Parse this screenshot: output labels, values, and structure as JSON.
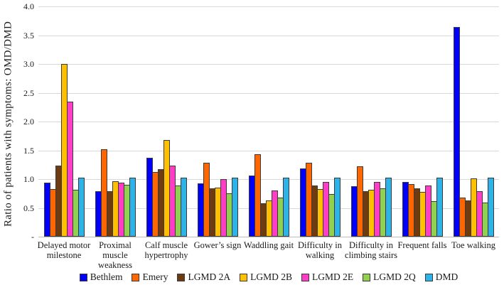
{
  "chart_data": {
    "type": "bar",
    "title": "",
    "xlabel": "",
    "ylabel": "Ratio of  patients with symptoms: OMD/DMD",
    "ylim": [
      0,
      4.0
    ],
    "grid": true,
    "legend_position": "bottom",
    "y_ticks": [
      {
        "label": "4.0",
        "value": 4.0
      },
      {
        "label": "3.5",
        "value": 3.5
      },
      {
        "label": "3.0",
        "value": 3.0
      },
      {
        "label": "2.5",
        "value": 2.5
      },
      {
        "label": "2.0",
        "value": 2.0
      },
      {
        "label": "1.5",
        "value": 1.5
      },
      {
        "label": "1.0",
        "value": 1.0
      },
      {
        "label": "0.5",
        "value": 0.5
      },
      {
        "label": "-",
        "value": 0.0
      }
    ],
    "categories": [
      "Delayed motor\nmilestone",
      "Proximal\nmuscle\nweakness",
      "Calf muscle\nhypertrophy",
      "Gower’s sign",
      "Waddling gait",
      "Difficulty in\nwalking",
      "Difficulty in\nclimbing stairs",
      "Frequent falls",
      "Toe walking"
    ],
    "series": [
      {
        "name": "Bethlem",
        "color": "#0000fa",
        "values": [
          0.91,
          0.76,
          1.35,
          0.9,
          1.04,
          1.16,
          0.85,
          0.93,
          3.62
        ]
      },
      {
        "name": "Emery",
        "color": "#ff6600",
        "values": [
          0.8,
          1.49,
          1.1,
          1.26,
          1.41,
          1.26,
          1.2,
          0.89,
          0.66
        ]
      },
      {
        "name": "LGMD 2A",
        "color": "#6e3b10",
        "values": [
          1.21,
          0.77,
          1.15,
          0.81,
          0.56,
          0.86,
          0.77,
          0.81,
          0.61
        ]
      },
      {
        "name": "LGMD 2B",
        "color": "#ffc000",
        "values": [
          2.97,
          0.94,
          1.65,
          0.83,
          0.6,
          0.8,
          0.79,
          0.75,
          0.99
        ]
      },
      {
        "name": "LGMD 2E",
        "color": "#ff3dc6",
        "values": [
          2.32,
          0.91,
          1.21,
          0.98,
          0.78,
          0.93,
          0.92,
          0.87,
          0.77
        ]
      },
      {
        "name": "LGMD 2Q",
        "color": "#92d050",
        "values": [
          0.79,
          0.88,
          0.86,
          0.73,
          0.65,
          0.72,
          0.81,
          0.59,
          0.57
        ]
      },
      {
        "name": "DMD",
        "color": "#2cb4e8",
        "values": [
          1.0,
          1.0,
          1.0,
          1.0,
          1.0,
          1.0,
          1.0,
          1.0,
          1.0
        ]
      }
    ],
    "colors": {
      "bar_outline": "#3b3b3b",
      "gridline": "#d9d9d9",
      "axis_line": "#bfbfbf"
    }
  }
}
